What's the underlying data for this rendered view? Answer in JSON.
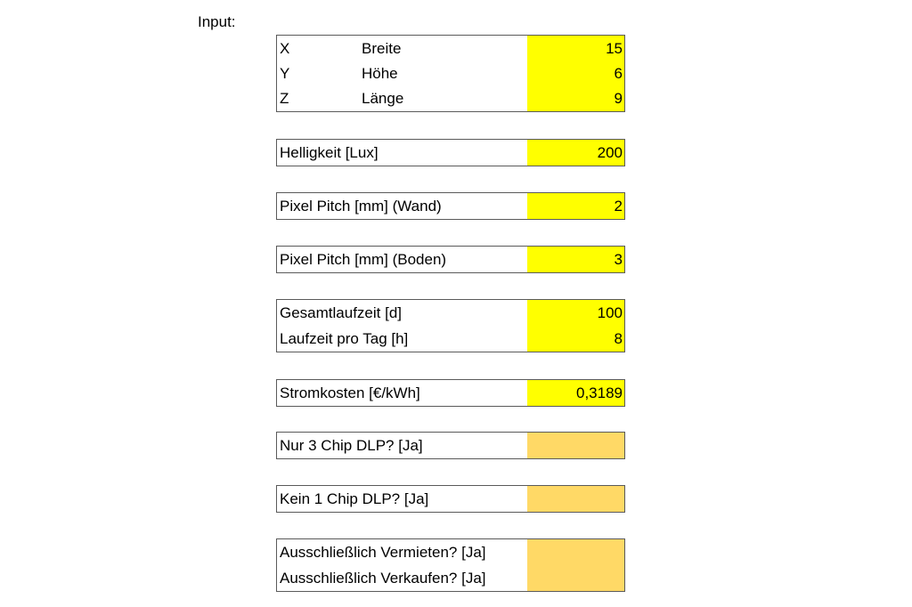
{
  "input_heading": "Input:",
  "colors": {
    "yellow_input": "#ffff00",
    "orange_input": "#ffd966",
    "border": "#5a5a5a"
  },
  "dimensions": {
    "rows": [
      {
        "axis": "X",
        "label": "Breite",
        "value": "15"
      },
      {
        "axis": "Y",
        "label": "Höhe",
        "value": "6"
      },
      {
        "axis": "Z",
        "label": "Länge",
        "value": "9"
      }
    ]
  },
  "brightness": {
    "label": "Helligkeit [Lux]",
    "value": "200"
  },
  "pitch_wall": {
    "label": "Pixel Pitch [mm] (Wand)",
    "value": "2"
  },
  "pitch_floor": {
    "label": "Pixel Pitch [mm] (Boden)",
    "value": "3"
  },
  "runtime": {
    "total": {
      "label": "Gesamtlaufzeit [d]",
      "value": "100"
    },
    "per_day": {
      "label": "Laufzeit pro Tag [h]",
      "value": "8"
    }
  },
  "power_cost": {
    "label": "Stromkosten [€/kWh]",
    "value": "0,3189"
  },
  "only_3chip": {
    "label": "Nur 3 Chip DLP? [Ja]",
    "value": ""
  },
  "no_1chip": {
    "label": "Kein 1 Chip DLP? [Ja]",
    "value": ""
  },
  "exclusive": {
    "rent": {
      "label": "Ausschließlich Vermieten? [Ja]",
      "value": ""
    },
    "sell": {
      "label": "Ausschließlich Verkaufen? [Ja]",
      "value": ""
    }
  }
}
